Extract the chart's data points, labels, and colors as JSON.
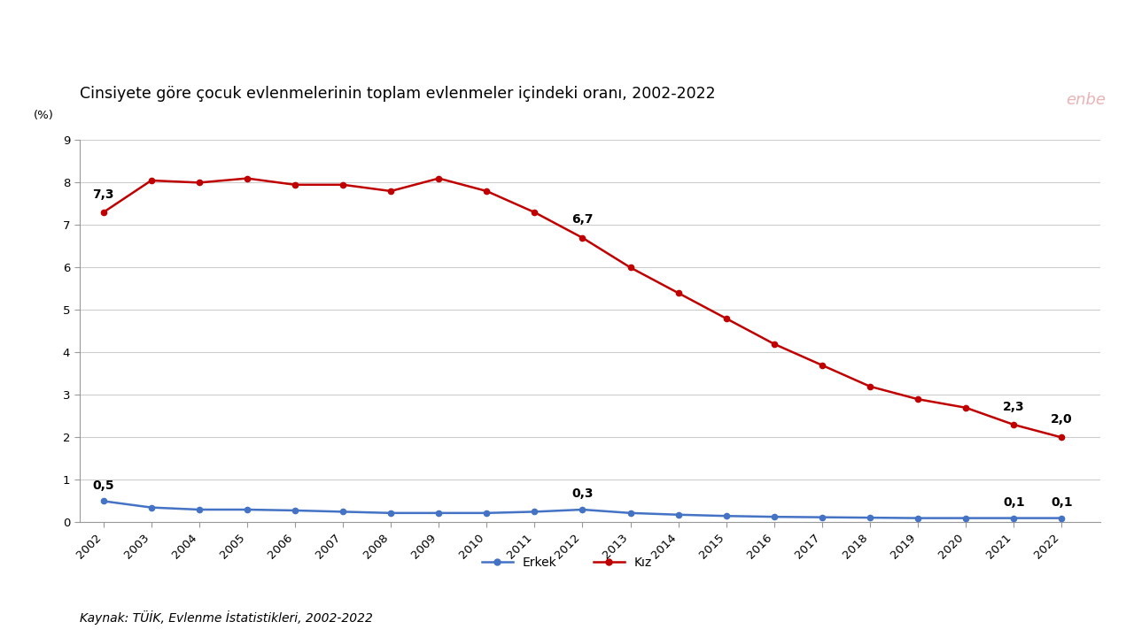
{
  "title": "Cinsiyete göre çocuk evlenmelerinin toplam evlenmeler içindeki oranı, 2002-2022",
  "pct_label": "(%)",
  "source_text": "Kaynak: TÜİK, Evlenme İstatistikleri, 2002-2022",
  "watermark": "enbe",
  "years": [
    2002,
    2003,
    2004,
    2005,
    2006,
    2007,
    2008,
    2009,
    2010,
    2011,
    2012,
    2013,
    2014,
    2015,
    2016,
    2017,
    2018,
    2019,
    2020,
    2021,
    2022
  ],
  "erkek": [
    0.5,
    0.35,
    0.3,
    0.3,
    0.28,
    0.25,
    0.22,
    0.22,
    0.22,
    0.25,
    0.3,
    0.22,
    0.18,
    0.15,
    0.13,
    0.12,
    0.11,
    0.1,
    0.1,
    0.1,
    0.1
  ],
  "kiz": [
    7.3,
    8.05,
    8.0,
    8.1,
    7.95,
    7.95,
    7.8,
    8.1,
    7.8,
    7.3,
    6.7,
    6.0,
    5.4,
    4.8,
    4.2,
    3.7,
    3.2,
    2.9,
    2.7,
    2.3,
    2.0
  ],
  "erkek_color": "#4472C4",
  "kiz_color": "#C00000",
  "erkek_label": "Erkek",
  "kiz_label": "Kız",
  "annot_erkek_indices": [
    0,
    10,
    19,
    20
  ],
  "annot_erkek_labels": [
    "0,5",
    "0,3",
    "0,1",
    "0,1"
  ],
  "annot_kiz_indices": [
    0,
    10,
    19,
    20
  ],
  "annot_kiz_labels": [
    "7,3",
    "6,7",
    "2,3",
    "2,0"
  ],
  "ylim": [
    0,
    9
  ],
  "yticks": [
    0,
    1,
    2,
    3,
    4,
    5,
    6,
    7,
    8,
    9
  ],
  "background_color": "#FFFFFF",
  "title_fontsize": 12.5,
  "axis_fontsize": 9.5,
  "annot_fontsize": 10,
  "legend_fontsize": 10,
  "source_fontsize": 10,
  "watermark_color": "#E8B4B8",
  "watermark_fontsize": 13,
  "grid_color": "#CCCCCC",
  "spine_color": "#999999"
}
